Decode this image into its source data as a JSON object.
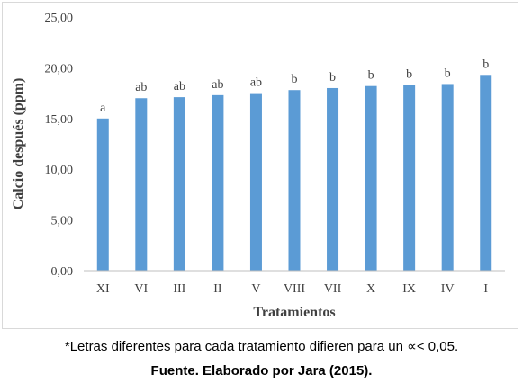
{
  "chart_data": {
    "type": "bar",
    "categories": [
      "XI",
      "VI",
      "III",
      "II",
      "V",
      "VIII",
      "VII",
      "X",
      "IX",
      "IV",
      "I"
    ],
    "values": [
      15.0,
      17.0,
      17.1,
      17.3,
      17.5,
      17.8,
      18.0,
      18.2,
      18.3,
      18.4,
      19.3
    ],
    "bar_labels": [
      "a",
      "ab",
      "ab",
      "ab",
      "ab",
      "b",
      "b",
      "b",
      "b",
      "b",
      "b"
    ],
    "title": "",
    "xlabel": "Tratamientos",
    "ylabel": "Calcio después (ppm)",
    "ylim": [
      0,
      25
    ],
    "yticks": [
      0,
      5,
      10,
      15,
      20,
      25
    ],
    "ytick_labels": [
      "0,00",
      "5,00",
      "10,00",
      "15,00",
      "20,00",
      "25,00"
    ],
    "bar_color": "#5b9bd5",
    "grid": false,
    "legend": "none"
  },
  "footnote": "*Letras diferentes para cada tratamiento difieren para un ∝< 0,05.",
  "source": "Fuente. Elaborado por Jara (2015)."
}
